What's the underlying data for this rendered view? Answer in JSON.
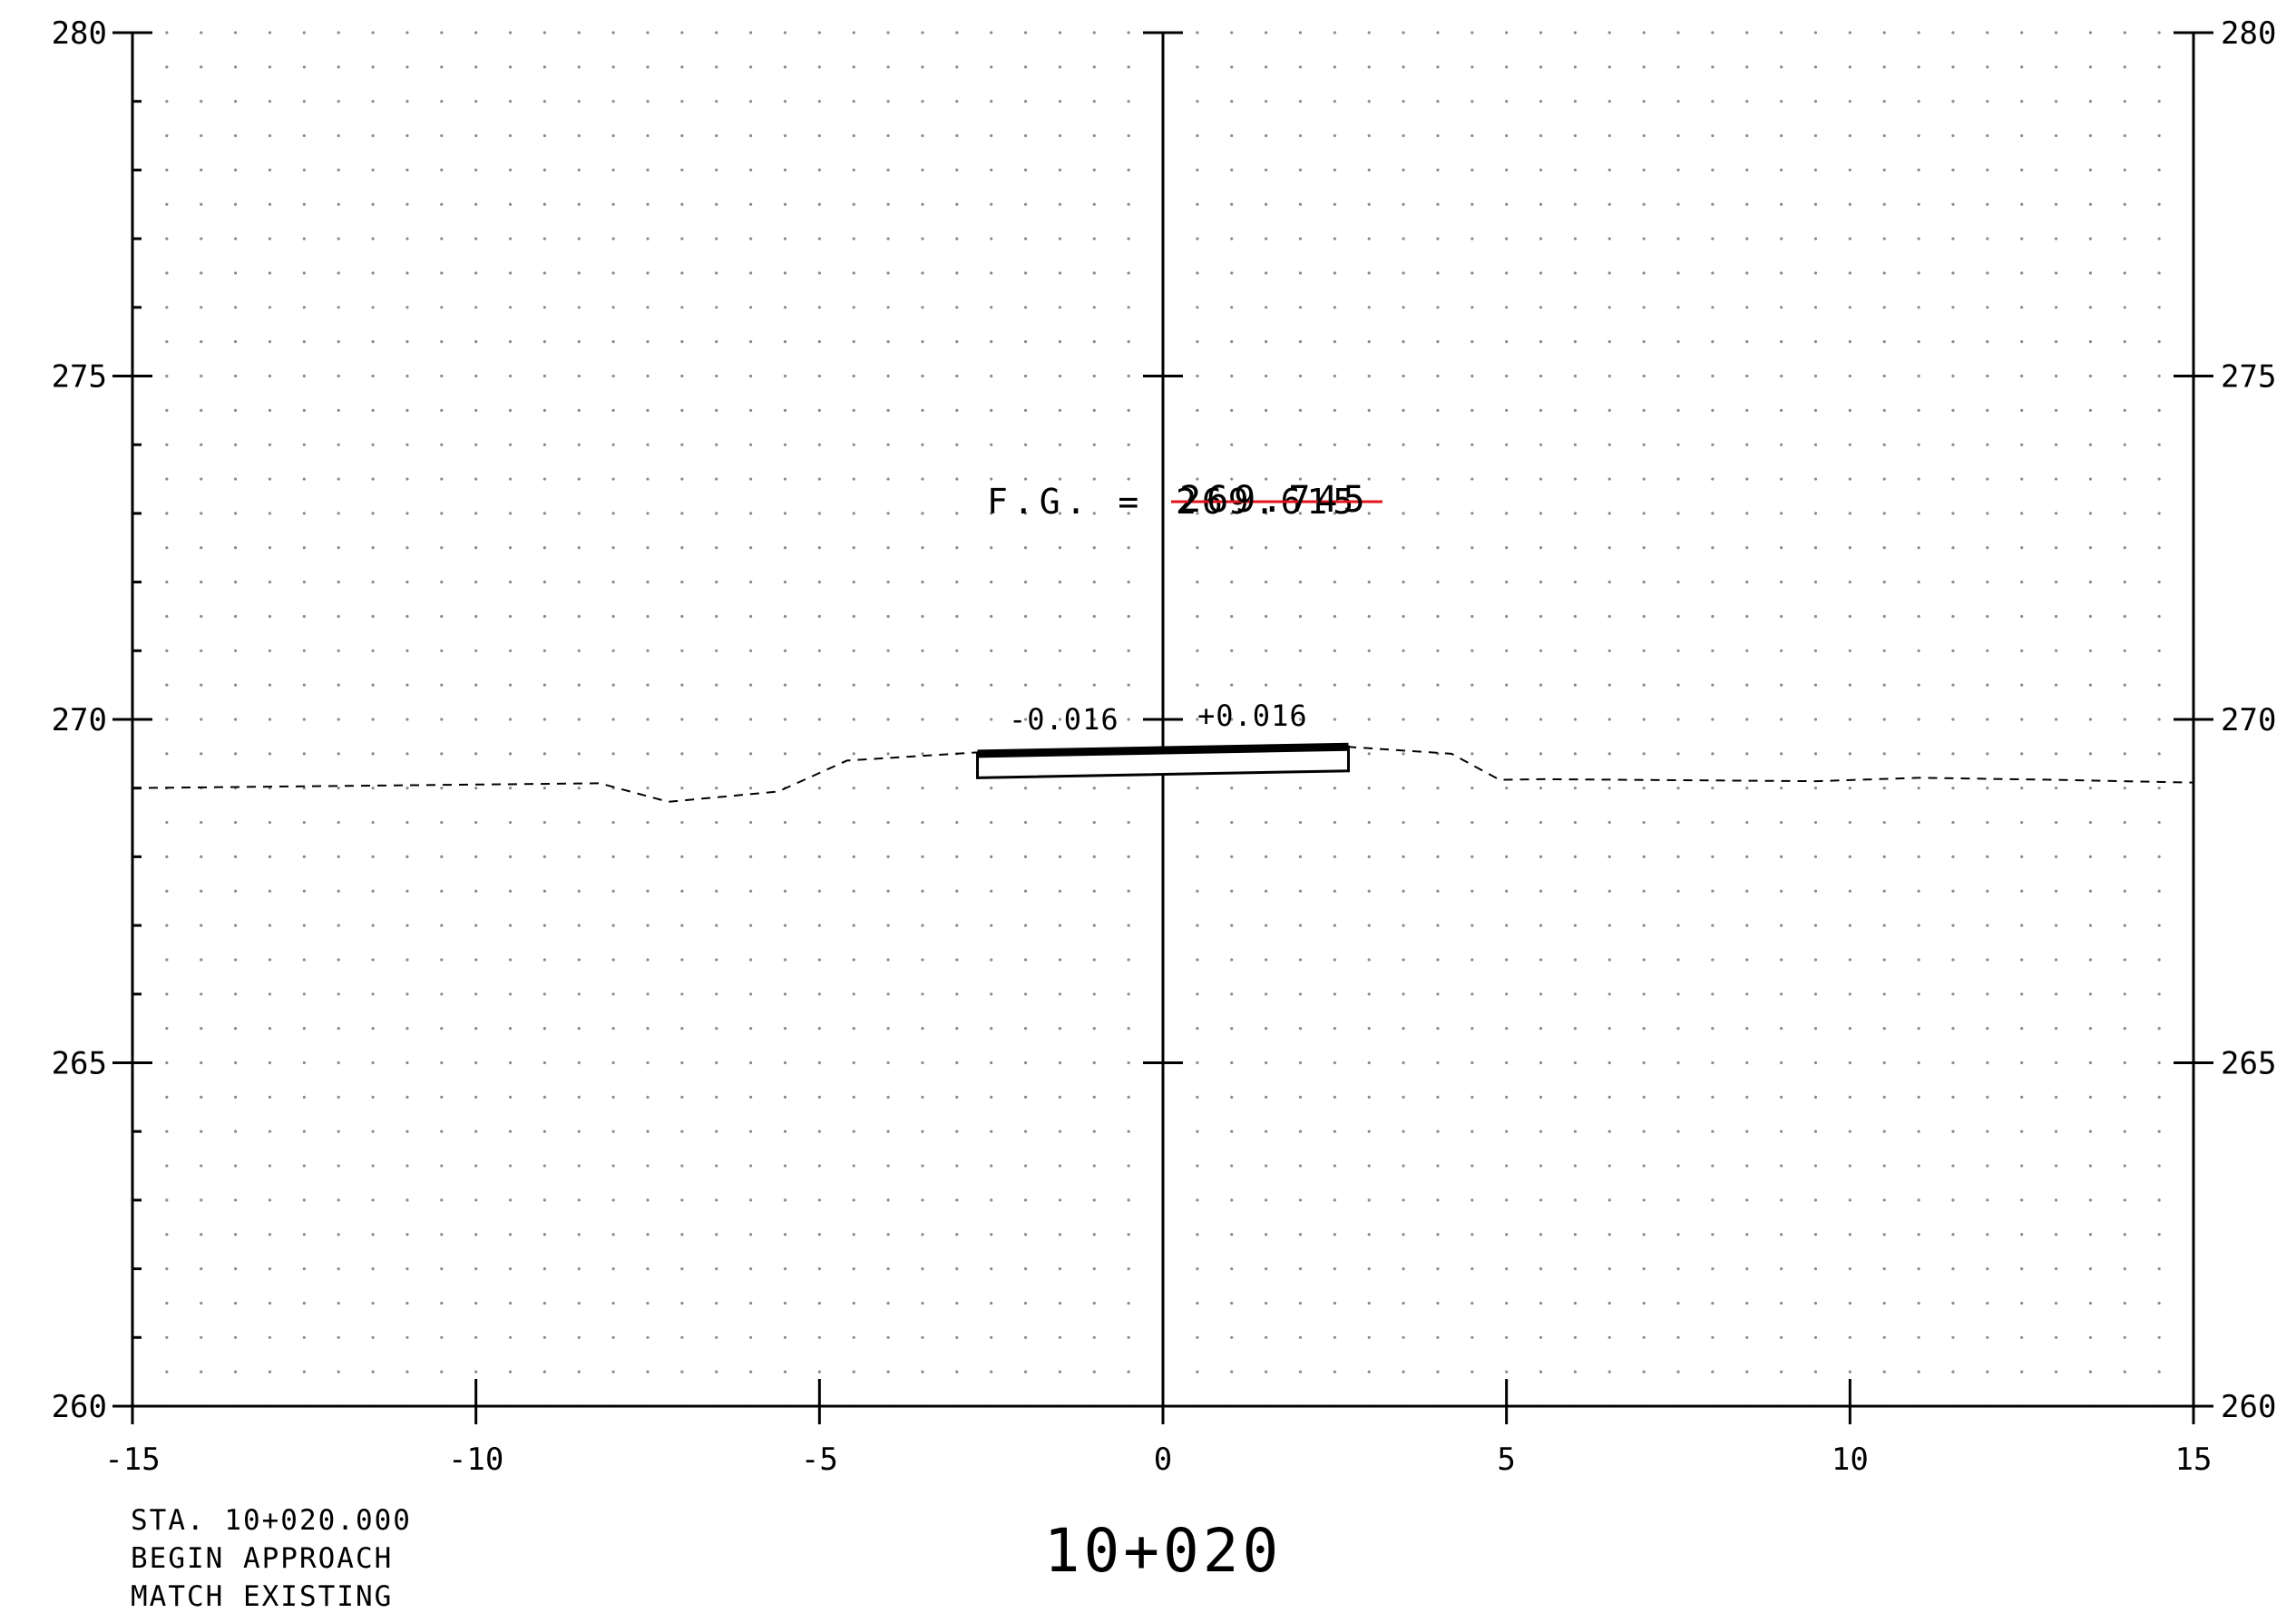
{
  "colors": {
    "ink": "#000000",
    "grid": "#8a8a8a",
    "revision": "#e0141c"
  },
  "chart_data": {
    "type": "cross-section",
    "xlim": [
      -15,
      15
    ],
    "ylim": [
      260,
      280
    ],
    "x_ticks": [
      "-15",
      "-10",
      "-5",
      "0",
      "5",
      "10",
      "15"
    ],
    "x_tick_values": [
      -15,
      -10,
      -5,
      0,
      5,
      10,
      15
    ],
    "y_ticks": [
      "260",
      "265",
      "270",
      "275",
      "280"
    ],
    "y_tick_values": [
      260,
      265,
      270,
      275,
      280
    ],
    "grid": "dotted",
    "existing_ground": [
      [
        -15,
        269.0
      ],
      [
        -8.2,
        269.07
      ],
      [
        -7.2,
        268.8
      ],
      [
        -5.6,
        268.95
      ],
      [
        -4.6,
        269.4
      ],
      [
        -2.7,
        269.52
      ],
      [
        2.7,
        269.6
      ],
      [
        4.2,
        269.5
      ],
      [
        4.9,
        269.12
      ],
      [
        5.5,
        269.13
      ],
      [
        9.5,
        269.1
      ],
      [
        11,
        269.15
      ],
      [
        13,
        269.12
      ],
      [
        15,
        269.08
      ]
    ],
    "finished_grade": [
      [
        -2.7,
        269.5
      ],
      [
        2.7,
        269.6
      ]
    ],
    "pavement_box": {
      "x": [
        -2.7,
        2.7
      ],
      "top": [
        269.5,
        269.6
      ],
      "bottom": [
        269.15,
        269.25
      ]
    },
    "annotations": {
      "fg_label": "F.G. =",
      "fg_old": "269.615",
      "fg_new": "269.745",
      "slope_left": "-0.016",
      "slope_right": "+0.016"
    }
  },
  "station": {
    "title": "10+020",
    "notes": [
      "STA. 10+020.000",
      "BEGIN APPROACH",
      "MATCH EXISTING"
    ]
  }
}
